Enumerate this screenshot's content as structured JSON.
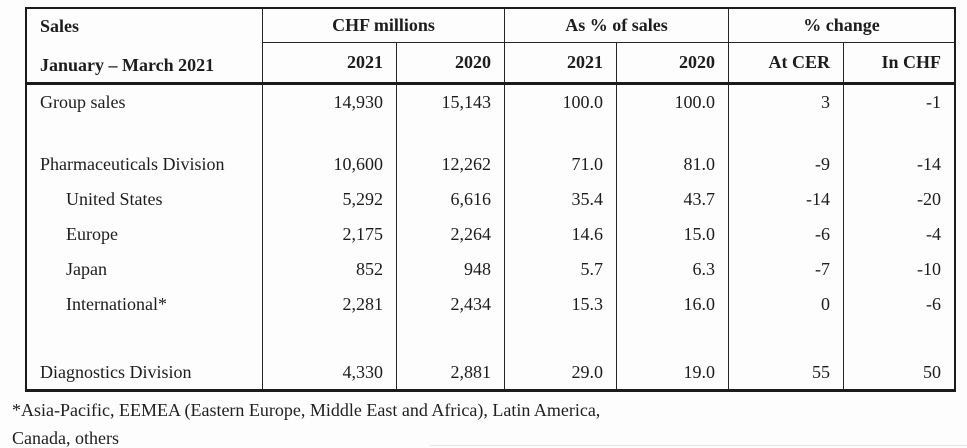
{
  "table": {
    "header": {
      "title": "Sales",
      "subtitle": "January – March 2021",
      "groups": [
        "CHF millions",
        "As % of sales",
        "% change"
      ],
      "columns": [
        "2021",
        "2020",
        "2021",
        "2020",
        "At CER",
        "In CHF"
      ]
    },
    "rows": [
      {
        "label": "Group sales",
        "values": [
          "14,930",
          "15,143",
          "100.0",
          "100.0",
          "3",
          "-1"
        ]
      },
      {
        "label": "Pharmaceuticals Division",
        "values": [
          "10,600",
          "12,262",
          "71.0",
          "81.0",
          "-9",
          "-14"
        ]
      },
      {
        "label": "United States",
        "values": [
          "5,292",
          "6,616",
          "35.4",
          "43.7",
          "-14",
          "-20"
        ]
      },
      {
        "label": "Europe",
        "values": [
          "2,175",
          "2,264",
          "14.6",
          "15.0",
          "-6",
          "-4"
        ]
      },
      {
        "label": "Japan",
        "values": [
          "852",
          "948",
          "5.7",
          "6.3",
          "-7",
          "-10"
        ]
      },
      {
        "label": "International*",
        "values": [
          "2,281",
          "2,434",
          "15.3",
          "16.0",
          "0",
          "-6"
        ]
      },
      {
        "label": "Diagnostics Division",
        "values": [
          "4,330",
          "2,881",
          "29.0",
          "19.0",
          "55",
          "50"
        ]
      }
    ],
    "footnote": {
      "line1": "*Asia-Pacific, EEMEA (Eastern Europe, Middle East and Africa), Latin America,",
      "line2": "Canada, others"
    }
  }
}
